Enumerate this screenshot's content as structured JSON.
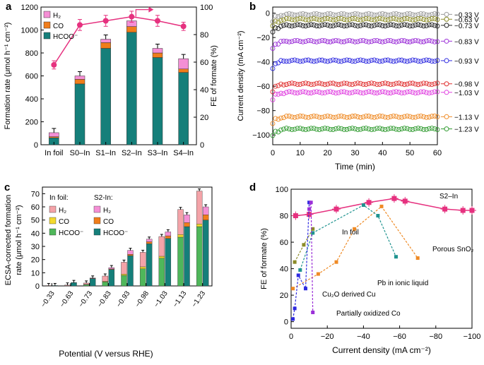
{
  "colors": {
    "h2": "#f48fd5",
    "co": "#f07d1a",
    "formate": "#157f7a",
    "fe": "#e6317f",
    "foil_h2": "#f4a3a8",
    "foil_co": "#f3d92e",
    "foil_formate": "#4fb75a",
    "cu2o": "#2e2ae0",
    "poxco": "#9b2fd8",
    "infoil": "#8b8b27",
    "snO2": "#ef8a24",
    "pb": "#1f938f",
    "grey": "#9a9a9a"
  },
  "chart_data": [
    {
      "panel": "a",
      "type": "bar",
      "categories": [
        "In foil",
        "S0–In",
        "S1–In",
        "S2–In",
        "S3–In",
        "S4–In"
      ],
      "stacked_series": [
        {
          "name": "HCOO⁻",
          "values": [
            60,
            530,
            840,
            980,
            760,
            630
          ]
        },
        {
          "name": "CO",
          "values": [
            10,
            40,
            50,
            50,
            40,
            30
          ]
        },
        {
          "name": "H2",
          "values": [
            35,
            30,
            30,
            50,
            40,
            90
          ]
        }
      ],
      "fe_series": {
        "name": "FE of formate",
        "values": [
          58,
          87,
          90,
          93,
          90,
          86
        ],
        "errors": [
          3,
          4,
          4,
          4,
          4,
          3
        ]
      },
      "ylabel": "Formation rate (μmol h⁻¹ cm⁻²)",
      "y2label": "FE of formate (%)",
      "ylim": [
        0,
        1200
      ],
      "y2lim": [
        0,
        100
      ],
      "yticks": [
        0,
        200,
        400,
        600,
        800,
        1000,
        1200
      ],
      "y2ticks": [
        0,
        20,
        40,
        60,
        80,
        100
      ],
      "legend": [
        "H₂",
        "CO",
        "HCOO⁻"
      ],
      "legend_position": "top-left"
    },
    {
      "panel": "b",
      "type": "scatter",
      "x": [
        0,
        60
      ],
      "series": [
        {
          "name": "−0.33 V",
          "y": -1,
          "color": "#9a9a9a"
        },
        {
          "name": "−0.63 V",
          "y": -5,
          "color": "#8b8b27"
        },
        {
          "name": "−0.73 V",
          "y": -10,
          "color": "#222222"
        },
        {
          "name": "−0.83 V",
          "y": -23,
          "color": "#9b2fd8"
        },
        {
          "name": "−0.93 V",
          "y": -39,
          "color": "#2e2ae0"
        },
        {
          "name": "−0.98 V",
          "y": -58,
          "color": "#e03030"
        },
        {
          "name": "−1.03 V",
          "y": -65,
          "color": "#e040e0"
        },
        {
          "name": "−1.13 V",
          "y": -85,
          "color": "#ef8a24"
        },
        {
          "name": "−1.23 V",
          "y": -95,
          "color": "#2e9a2e"
        }
      ],
      "xlabel": "Time (min)",
      "ylabel": "Current density (mA cm⁻²)",
      "xlim": [
        0,
        60
      ],
      "ylim": [
        -108,
        5
      ],
      "xticks": [
        0,
        10,
        20,
        30,
        40,
        50,
        60
      ],
      "yticks": [
        0,
        -20,
        -40,
        -60,
        -80,
        -100
      ]
    },
    {
      "panel": "c",
      "type": "bar",
      "categories": [
        "−0.33",
        "−0.63",
        "−0.73",
        "−0.83",
        "−0.93",
        "−0.98",
        "−1.03",
        "−1.13",
        "−1.23"
      ],
      "in_foil": {
        "HCOO⁻": [
          0,
          0.2,
          1,
          3,
          8,
          13,
          21,
          37,
          45
        ],
        "CO": [
          0,
          0,
          0.2,
          0.5,
          1.0,
          1.5,
          1.5,
          2,
          2
        ],
        "H2": [
          0.3,
          0.5,
          1,
          4,
          9,
          11,
          15,
          19,
          25
        ]
      },
      "s2_in": {
        "HCOO⁻": [
          0.3,
          2.5,
          5.5,
          12.5,
          23,
          32,
          36,
          45,
          50
        ],
        "CO": [
          0,
          0,
          0.2,
          0.4,
          1,
          1.5,
          2,
          3,
          4
        ],
        "H2": [
          0,
          0.1,
          0.3,
          1,
          3,
          2,
          3,
          6,
          6
        ]
      },
      "xlabel": "Potential (V versus RHE)",
      "ylabel": "ECSA-corrected formation rate (μmol h⁻¹ cm⁻²)",
      "ylim": [
        0,
        75
      ],
      "yticks": [
        0,
        10,
        20,
        30,
        40,
        50,
        60,
        70
      ],
      "legend_in_foil_title": "In foil:",
      "legend_s2_title": "S2-In:",
      "legend": [
        "H₂",
        "CO",
        "HCOO⁻"
      ]
    },
    {
      "panel": "d",
      "type": "line",
      "series": [
        {
          "name": "S2–In",
          "x": [
            -2.5,
            -10,
            -25,
            -43,
            -57,
            -63,
            -85,
            -95,
            -100
          ],
          "y": [
            80,
            81,
            85,
            90,
            93,
            91,
            85,
            84,
            84
          ]
        },
        {
          "name": "In foil",
          "x": [
            -2,
            -7,
            -12
          ],
          "y": [
            45,
            58,
            70
          ]
        },
        {
          "name": "Porous SnO₂",
          "x": [
            -1,
            -15,
            -25,
            -35,
            -50,
            -70
          ],
          "y": [
            25,
            36,
            45,
            70,
            87,
            48
          ]
        },
        {
          "name": "Pb in ionic liquid",
          "x": [
            -5,
            -12,
            -40,
            -48,
            -58
          ],
          "y": [
            39,
            67,
            88,
            80,
            49
          ]
        },
        {
          "name": "Cu₂O derived Cu",
          "x": [
            -1,
            -2,
            -4,
            -8,
            -10
          ],
          "y": [
            2,
            10,
            35,
            25,
            90
          ]
        },
        {
          "name": "Partially oxidized Co",
          "x": [
            -10,
            -11,
            -12
          ],
          "y": [
            85,
            90,
            7
          ]
        }
      ],
      "xlabel": "Current density (mA cm⁻²)",
      "ylabel": "FE of formate (%)",
      "xlim": [
        0,
        -100
      ],
      "ylim": [
        -5,
        100
      ],
      "xticks": [
        0,
        -20,
        -40,
        -60,
        -80,
        -100
      ],
      "yticks": [
        0,
        20,
        40,
        60,
        80,
        100
      ]
    }
  ],
  "labels": {
    "a": "a",
    "b": "b",
    "c": "c",
    "d": "d",
    "s2in": "S2–In",
    "infoil": "In foil",
    "snO2": "Porous SnO₂",
    "pb": "Pb in ionic liquid",
    "cu2o": "Cu₂O derived Cu",
    "poxco": "Partially oxidized Co"
  }
}
